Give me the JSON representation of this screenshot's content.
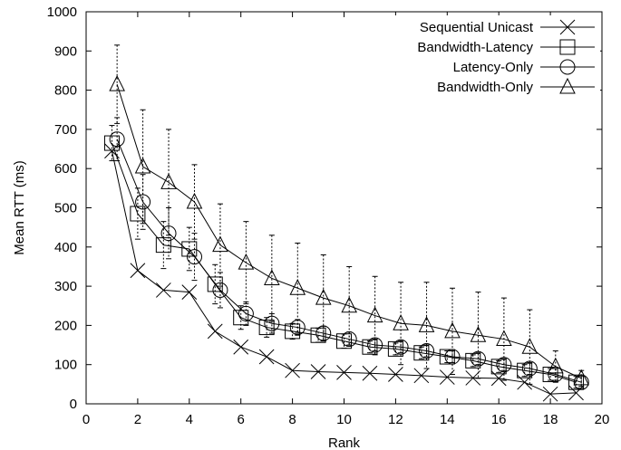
{
  "chart_data": {
    "type": "line",
    "title": "",
    "xlabel": "Rank",
    "ylabel": "Mean RTT (ms)",
    "xlim": [
      0,
      20
    ],
    "ylim": [
      0,
      1000
    ],
    "xticks": [
      0,
      2,
      4,
      6,
      8,
      10,
      12,
      14,
      16,
      18,
      20
    ],
    "yticks": [
      0,
      100,
      200,
      300,
      400,
      500,
      600,
      700,
      800,
      900,
      1000
    ],
    "grid": false,
    "legend_position": "top-right",
    "series": [
      {
        "name": "Sequential Unicast",
        "marker": "x",
        "x": [
          1,
          2,
          3,
          4,
          5,
          6,
          7,
          8,
          9,
          10,
          11,
          12,
          13,
          14,
          15,
          16,
          17,
          18,
          19
        ],
        "y": [
          645,
          340,
          290,
          285,
          185,
          145,
          120,
          85,
          82,
          80,
          78,
          75,
          72,
          68,
          66,
          65,
          55,
          25,
          28
        ],
        "error": null
      },
      {
        "name": "Bandwidth-Latency",
        "marker": "square",
        "x": [
          1,
          2,
          3,
          4,
          5,
          6,
          7,
          8,
          9,
          10,
          11,
          12,
          13,
          14,
          15,
          16,
          17,
          18,
          19
        ],
        "y": [
          665,
          485,
          405,
          395,
          305,
          220,
          195,
          185,
          175,
          160,
          145,
          140,
          130,
          120,
          110,
          95,
          85,
          75,
          55
        ],
        "error": [
          45,
          65,
          60,
          55,
          50,
          30,
          25,
          20,
          18,
          18,
          15,
          15,
          15,
          15,
          15,
          15,
          15,
          15,
          15
        ]
      },
      {
        "name": "Latency-Only",
        "marker": "circle",
        "x": [
          1.2,
          2.2,
          3.2,
          4.2,
          5.2,
          6.2,
          7.2,
          8.2,
          9.2,
          10.2,
          11.2,
          12.2,
          13.2,
          14.2,
          15.2,
          16.2,
          17.2,
          18.2,
          19.2
        ],
        "y": [
          675,
          515,
          435,
          375,
          290,
          230,
          205,
          195,
          180,
          165,
          150,
          145,
          135,
          120,
          115,
          100,
          90,
          75,
          55
        ],
        "error": [
          55,
          70,
          65,
          60,
          45,
          30,
          25,
          20,
          18,
          18,
          15,
          15,
          15,
          15,
          15,
          15,
          15,
          15,
          15
        ]
      },
      {
        "name": "Bandwidth-Only",
        "marker": "triangle",
        "x": [
          1.2,
          2.2,
          3.2,
          4.2,
          5.2,
          6.2,
          7.2,
          8.2,
          9.2,
          10.2,
          11.2,
          12.2,
          13.2,
          14.2,
          15.2,
          16.2,
          17.2,
          18.2,
          19.2
        ],
        "y": [
          815,
          605,
          565,
          515,
          405,
          360,
          320,
          295,
          270,
          250,
          225,
          205,
          200,
          185,
          175,
          165,
          145,
          95,
          65
        ],
        "error": [
          100,
          145,
          135,
          95,
          105,
          105,
          110,
          115,
          110,
          100,
          100,
          105,
          110,
          110,
          110,
          105,
          95,
          40,
          20
        ]
      }
    ]
  }
}
